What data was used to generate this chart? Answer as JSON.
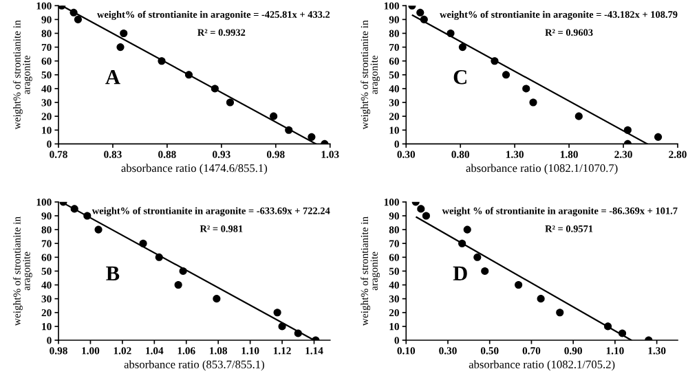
{
  "chart_data": [
    {
      "type": "scatter",
      "xlabel": "absorbance ratio (1474.6/855.1)",
      "ylabel": "weight% of strontianite in\naragonite",
      "xlim": [
        0.78,
        1.03
      ],
      "xticks": [
        {
          "value": 0.78,
          "label": "0.78"
        },
        {
          "value": 0.83,
          "label": "0.83"
        },
        {
          "value": 0.88,
          "label": "0.88"
        },
        {
          "value": 0.93,
          "label": "0.93"
        },
        {
          "value": 0.98,
          "label": "0.98"
        },
        {
          "value": 1.03,
          "label": "1.03"
        }
      ],
      "ylim": [
        0,
        100
      ],
      "yticks": [
        0,
        10,
        20,
        30,
        40,
        50,
        60,
        70,
        80,
        90,
        100
      ],
      "grid": false,
      "annotations": [
        "weight% of strontianite in aragonite = -425.81x + 433.2",
        "R² = 0.9932",
        "A"
      ],
      "series": [
        {
          "marker": "circle",
          "color": "#000000",
          "x": [
            0.783,
            0.794,
            0.798,
            0.84,
            0.837,
            0.875,
            0.9,
            0.924,
            0.938,
            0.978,
            0.992,
            1.013,
            1.025
          ],
          "values": [
            100,
            95,
            90,
            80,
            70,
            60,
            50,
            40,
            30,
            20,
            10,
            5,
            0
          ]
        },
        {
          "type": "line",
          "color": "#000000",
          "x": [
            0.783,
            1.017
          ],
          "values": [
            100,
            0
          ]
        }
      ]
    },
    {
      "type": "scatter",
      "xlabel": "absorbance ratio (1082.1/1070.7)",
      "ylabel": "weight% of strontianite in\naragonite",
      "xlim": [
        0.3,
        2.8
      ],
      "xticks": [
        {
          "value": 0.3,
          "label": "0.30"
        },
        {
          "value": 0.8,
          "label": "0.80"
        },
        {
          "value": 1.3,
          "label": "1.30"
        },
        {
          "value": 1.8,
          "label": "1.80"
        },
        {
          "value": 2.3,
          "label": "2.30"
        },
        {
          "value": 2.8,
          "label": "2.80"
        }
      ],
      "ylim": [
        0,
        100
      ],
      "yticks": [
        0,
        10,
        20,
        30,
        40,
        50,
        60,
        70,
        80,
        90,
        100
      ],
      "grid": false,
      "annotations": [
        "weight% of strontianite in aragonite = -43.182x + 108.79",
        "R² = 0.9603",
        "C"
      ],
      "series": [
        {
          "marker": "circle",
          "color": "#000000",
          "x": [
            0.355,
            0.43,
            0.465,
            0.71,
            0.82,
            1.115,
            1.22,
            1.405,
            1.47,
            1.89,
            2.34,
            2.34,
            2.62
          ],
          "values": [
            100,
            95,
            90,
            80,
            70,
            60,
            50,
            40,
            30,
            20,
            10,
            0,
            5
          ]
        },
        {
          "type": "line",
          "color": "#000000",
          "x": [
            0.36,
            2.52
          ],
          "values": [
            93,
            0
          ]
        }
      ]
    },
    {
      "type": "scatter",
      "xlabel": "absorbance ratio (853.7/855.1)",
      "ylabel": "weight% of strontianite in\naragonite",
      "xlim": [
        0.98,
        1.15
      ],
      "xticks": [
        {
          "value": 0.98,
          "label": "0.98"
        },
        {
          "value": 1.0,
          "label": "1.00"
        },
        {
          "value": 1.02,
          "label": "1.02"
        },
        {
          "value": 1.04,
          "label": "1.04"
        },
        {
          "value": 1.06,
          "label": "1.06"
        },
        {
          "value": 1.08,
          "label": "1.08"
        },
        {
          "value": 1.1,
          "label": "1.10"
        },
        {
          "value": 1.12,
          "label": "1.12"
        },
        {
          "value": 1.14,
          "label": "1.14"
        }
      ],
      "ylim": [
        0,
        100
      ],
      "yticks": [
        0,
        10,
        20,
        30,
        40,
        50,
        60,
        70,
        80,
        90,
        100
      ],
      "grid": false,
      "annotations": [
        "weight% of strontianite in aragonite = -633.69x + 722.24",
        "R² = 0.981",
        "B"
      ],
      "series": [
        {
          "marker": "circle",
          "color": "#000000",
          "x": [
            0.983,
            0.99,
            0.998,
            1.005,
            1.033,
            1.043,
            1.055,
            1.058,
            1.079,
            1.117,
            1.12,
            1.13,
            1.141
          ],
          "values": [
            100,
            95,
            90,
            80,
            70,
            60,
            40,
            50,
            30,
            20,
            10,
            5,
            0
          ]
        },
        {
          "type": "line",
          "color": "#000000",
          "x": [
            0.985,
            1.14
          ],
          "values": [
            98,
            0
          ]
        }
      ]
    },
    {
      "type": "scatter",
      "xlabel": "absorbance ratio (1082.1/705.2)",
      "ylabel": "weight% of strontianite in\naragonite",
      "xlim": [
        0.1,
        1.4
      ],
      "xticks": [
        {
          "value": 0.1,
          "label": "0.10"
        },
        {
          "value": 0.3,
          "label": "0.30"
        },
        {
          "value": 0.5,
          "label": "0.50"
        },
        {
          "value": 0.7,
          "label": "0.70"
        },
        {
          "value": 0.9,
          "label": "0.90"
        },
        {
          "value": 1.1,
          "label": "1.10"
        },
        {
          "value": 1.3,
          "label": "1.30"
        }
      ],
      "ylim": [
        0,
        100
      ],
      "yticks": [
        0,
        10,
        20,
        30,
        40,
        50,
        60,
        70,
        80,
        90,
        100
      ],
      "grid": false,
      "annotations": [
        "weight % of strontianite in aragonite = -86.369x + 101.7",
        "R² = 0.9571",
        "D"
      ],
      "series": [
        {
          "marker": "circle",
          "color": "#000000",
          "x": [
            0.146,
            0.171,
            0.196,
            0.368,
            0.393,
            0.441,
            0.477,
            0.638,
            0.745,
            0.836,
            1.066,
            1.135,
            1.261
          ],
          "values": [
            100,
            95,
            90,
            70,
            80,
            60,
            50,
            40,
            30,
            20,
            10,
            5,
            0
          ]
        },
        {
          "type": "line",
          "color": "#000000",
          "x": [
            0.15,
            1.178
          ],
          "values": [
            89,
            0
          ]
        }
      ]
    }
  ]
}
